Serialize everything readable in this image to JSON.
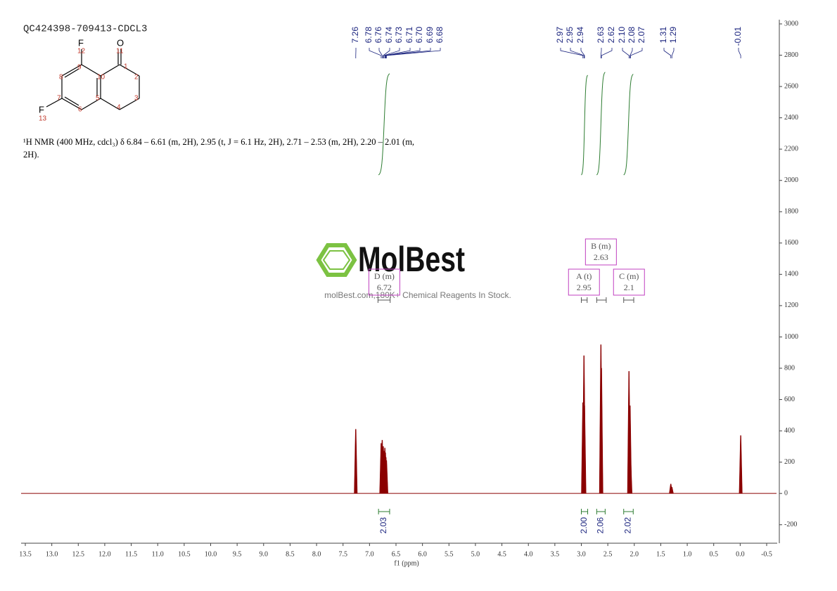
{
  "chart_data": {
    "type": "nmr",
    "title": "QC424398-709413-CDCL3",
    "description": "¹H NMR (400 MHz, cdcl₃) δ 6.84 – 6.61 (m, 2H), 2.95 (t, J = 6.1 Hz, 2H), 2.71 – 2.53 (m, 2H), 2.20 – 2.01 (m, 2H).",
    "x_label": "f1 (ppm)",
    "xlim": [
      13.5,
      -0.5
    ],
    "xticks": [
      13.5,
      {
        "value": 13,
        "label": "13.0"
      },
      12.5,
      {
        "value": 12,
        "label": "12.0"
      },
      11.5,
      {
        "value": 11,
        "label": "11.0"
      },
      10.5,
      {
        "value": 10,
        "label": "10.0"
      },
      9.5,
      {
        "value": 9,
        "label": "9.0"
      },
      8.5,
      {
        "value": 8,
        "label": "8.0"
      },
      7.5,
      {
        "value": 7,
        "label": "7.0"
      },
      6.5,
      {
        "value": 6,
        "label": "6.0"
      },
      5.5,
      {
        "value": 5,
        "label": "5.0"
      },
      4.5,
      {
        "value": 4,
        "label": "4.0"
      },
      3.5,
      {
        "value": 3,
        "label": "3.0"
      },
      2.5,
      {
        "value": 2,
        "label": "2.0"
      },
      1.5,
      {
        "value": 1,
        "label": "1.0"
      },
      0.5,
      {
        "value": 0,
        "label": "0.0"
      },
      -0.5
    ],
    "ylim": [
      -300,
      3000
    ],
    "yticks": [
      -200,
      0,
      200,
      400,
      600,
      800,
      1000,
      1200,
      1400,
      1600,
      1800,
      2000,
      2200,
      2400,
      2600,
      2800,
      3000
    ],
    "color": "#8b0000",
    "x": [
      7.26,
      6.78,
      6.76,
      6.74,
      6.73,
      6.71,
      6.7,
      6.69,
      6.68,
      2.97,
      2.95,
      2.94,
      2.63,
      2.62,
      2.1,
      2.08,
      2.07,
      1.31,
      1.29,
      -0.01
    ],
    "x_labels": [
      "7.26",
      "6.78",
      "6.76",
      "6.74",
      "6.73",
      "6.71",
      "6.70",
      "6.69",
      "6.68",
      "2.97",
      "2.95",
      "2.94",
      "2.63",
      "2.62",
      "2.10",
      "2.08",
      "2.07",
      "1.31",
      "1.29",
      "-0.01"
    ],
    "values": [
      410,
      320,
      340,
      300,
      270,
      290,
      260,
      230,
      210,
      580,
      880,
      560,
      950,
      800,
      780,
      560,
      220,
      60,
      40,
      370
    ],
    "integrals": [
      {
        "range": [
          6.83,
          6.62
        ],
        "value": 2.03,
        "value_label": "2.03"
      },
      {
        "range": [
          3.0,
          2.88
        ],
        "value": 2,
        "value_label": "2.00"
      },
      {
        "range": [
          2.71,
          2.55
        ],
        "value": 2.06,
        "value_label": "2.06"
      },
      {
        "range": [
          2.2,
          2.02
        ],
        "value": 2.02,
        "value_label": "2.02"
      }
    ],
    "multiplets": [
      {
        "label": "D (m)",
        "shift": 6.72,
        "range": [
          6.84,
          6.61
        ]
      },
      {
        "label": "A (t)",
        "shift": 2.95,
        "range": [
          3.0,
          2.89
        ]
      },
      {
        "label": "B (m)",
        "shift": 2.63,
        "range": [
          2.71,
          2.53
        ]
      },
      {
        "label": "C (m)",
        "shift": 2.1,
        "range": [
          2.2,
          2.01
        ]
      }
    ],
    "structure": {
      "atoms": [
        "F",
        "12",
        "O",
        "11",
        "1",
        "2",
        "3",
        "4",
        "5",
        "6",
        "7",
        "8",
        "9",
        "10",
        "F",
        "13"
      ]
    },
    "watermark": {
      "logo": "MolBest",
      "text": "molBest.com,180K+ Chemical Reagents In Stock."
    }
  }
}
